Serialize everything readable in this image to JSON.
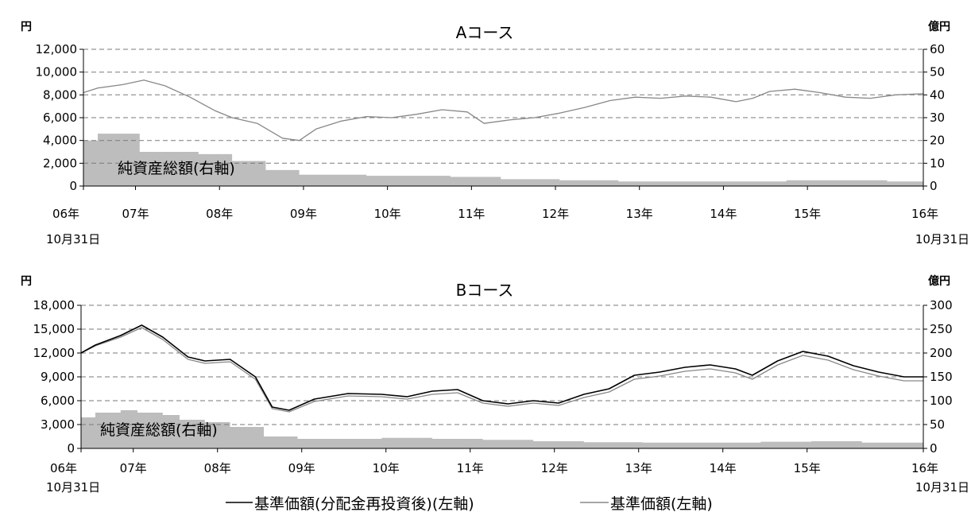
{
  "legend": {
    "items": [
      {
        "label": "基準価額(分配金再投資後)(左軸)",
        "color": "#000000"
      },
      {
        "label": "基準価額(左軸)",
        "color": "#888888"
      }
    ]
  },
  "chart_data": [
    {
      "type": "line",
      "title": "Aコース",
      "left_unit": "円",
      "right_unit": "億円",
      "area_label": "純資産総額(右軸)",
      "ylim": [
        0,
        12000
      ],
      "y_ticks": [
        0,
        2000,
        4000,
        6000,
        8000,
        10000,
        12000
      ],
      "y_tick_labels": [
        "0",
        "2,000",
        "4,000",
        "6,000",
        "8,000",
        "10,000",
        "12,000"
      ],
      "y2lim": [
        0,
        60
      ],
      "y2_ticks": [
        0,
        10,
        20,
        30,
        40,
        50,
        60
      ],
      "y2_tick_labels": [
        "0",
        "10",
        "20",
        "30",
        "40",
        "50",
        "60"
      ],
      "xlim": [
        2006.83,
        2016.83
      ],
      "x_ticks": [
        2006.83,
        2007.45,
        2008.45,
        2009.45,
        2010.45,
        2011.45,
        2012.45,
        2013.45,
        2014.45,
        2015.45,
        2016.83
      ],
      "x_tick_labels": [
        "06年",
        "07年",
        "08年",
        "09年",
        "10年",
        "11年",
        "12年",
        "13年",
        "14年",
        "15年",
        "16年"
      ],
      "x_edge_labels": [
        "10月31日",
        "10月31日"
      ],
      "grid": true,
      "series": [
        {
          "name": "基準価額(分配金再投資後)",
          "axis": "left",
          "color": "#888888",
          "x": [
            2006.83,
            2007.0,
            2007.3,
            2007.55,
            2007.8,
            2008.1,
            2008.4,
            2008.6,
            2008.9,
            2009.2,
            2009.4,
            2009.6,
            2009.9,
            2010.2,
            2010.5,
            2010.8,
            2011.1,
            2011.4,
            2011.6,
            2011.9,
            2012.2,
            2012.5,
            2012.8,
            2013.1,
            2013.4,
            2013.7,
            2014.0,
            2014.3,
            2014.6,
            2014.8,
            2015.0,
            2015.3,
            2015.6,
            2015.9,
            2016.2,
            2016.5,
            2016.83
          ],
          "y": [
            8200,
            8600,
            8900,
            9300,
            8800,
            7800,
            6600,
            6000,
            5500,
            4200,
            4000,
            5000,
            5700,
            6100,
            6000,
            6300,
            6700,
            6500,
            5500,
            5800,
            6000,
            6400,
            6900,
            7500,
            7800,
            7700,
            7900,
            7800,
            7400,
            7700,
            8300,
            8500,
            8200,
            7800,
            7700,
            8000,
            8100
          ]
        },
        {
          "name": "純資産総額",
          "axis": "right",
          "type": "area",
          "color": "#bdbdbd",
          "x": [
            2006.83,
            2007.0,
            2007.3,
            2007.5,
            2007.8,
            2008.2,
            2008.6,
            2009.0,
            2009.4,
            2009.8,
            2010.2,
            2010.6,
            2011.2,
            2011.8,
            2012.5,
            2013.2,
            2013.9,
            2014.6,
            2015.2,
            2015.9,
            2016.4,
            2016.83
          ],
          "y": [
            20,
            23,
            23,
            15,
            15,
            14,
            11,
            7,
            5,
            5,
            4.5,
            4.5,
            4,
            3,
            2.5,
            2,
            2,
            2,
            2.5,
            2.5,
            2,
            2
          ]
        }
      ]
    },
    {
      "type": "line",
      "title": "Bコース",
      "left_unit": "円",
      "right_unit": "億円",
      "area_label": "純資産総額(右軸)",
      "ylim": [
        0,
        18000
      ],
      "y_ticks": [
        0,
        3000,
        6000,
        9000,
        12000,
        15000,
        18000
      ],
      "y_tick_labels": [
        "0",
        "3,000",
        "6,000",
        "9,000",
        "12,000",
        "15,000",
        "18,000"
      ],
      "y2lim": [
        0,
        300
      ],
      "y2_ticks": [
        0,
        50,
        100,
        150,
        200,
        250,
        300
      ],
      "y2_tick_labels": [
        "0",
        "50",
        "100",
        "150",
        "200",
        "250",
        "300"
      ],
      "xlim": [
        2006.83,
        2016.83
      ],
      "x_ticks": [
        2006.83,
        2007.45,
        2008.45,
        2009.45,
        2010.45,
        2011.45,
        2012.45,
        2013.45,
        2014.45,
        2015.45,
        2016.83
      ],
      "x_tick_labels": [
        "06年",
        "07年",
        "08年",
        "09年",
        "10年",
        "11年",
        "12年",
        "13年",
        "14年",
        "15年",
        "16年"
      ],
      "x_edge_labels": [
        "10月31日",
        "10月31日"
      ],
      "grid": true,
      "series": [
        {
          "name": "基準価額(分配金再投資後)",
          "axis": "left",
          "color": "#000000",
          "x": [
            2006.83,
            2007.0,
            2007.3,
            2007.55,
            2007.8,
            2008.1,
            2008.3,
            2008.6,
            2008.9,
            2009.1,
            2009.3,
            2009.6,
            2010.0,
            2010.4,
            2010.7,
            2011.0,
            2011.3,
            2011.6,
            2011.9,
            2012.2,
            2012.5,
            2012.8,
            2013.1,
            2013.4,
            2013.7,
            2014.0,
            2014.3,
            2014.6,
            2014.8,
            2015.1,
            2015.4,
            2015.7,
            2016.0,
            2016.3,
            2016.6,
            2016.83
          ],
          "y": [
            12000,
            13000,
            14200,
            15500,
            14000,
            11500,
            11000,
            11200,
            9000,
            5200,
            4800,
            6200,
            6900,
            6800,
            6500,
            7200,
            7400,
            6000,
            5600,
            6000,
            5700,
            6800,
            7500,
            9200,
            9600,
            10200,
            10500,
            10000,
            9200,
            11000,
            12200,
            11600,
            10400,
            9600,
            9000,
            9000
          ]
        },
        {
          "name": "基準価額",
          "axis": "left",
          "color": "#888888",
          "x": [
            2006.83,
            2007.0,
            2007.3,
            2007.55,
            2007.8,
            2008.1,
            2008.3,
            2008.6,
            2008.9,
            2009.1,
            2009.3,
            2009.6,
            2010.0,
            2010.4,
            2010.7,
            2011.0,
            2011.3,
            2011.6,
            2011.9,
            2012.2,
            2012.5,
            2012.8,
            2013.1,
            2013.4,
            2013.7,
            2014.0,
            2014.3,
            2014.6,
            2014.8,
            2015.1,
            2015.4,
            2015.7,
            2016.0,
            2016.3,
            2016.6,
            2016.83
          ],
          "y": [
            12000,
            12900,
            14000,
            15200,
            13700,
            11200,
            10700,
            10900,
            8700,
            5000,
            4600,
            5900,
            6600,
            6500,
            6200,
            6800,
            7000,
            5700,
            5300,
            5700,
            5400,
            6400,
            7100,
            8700,
            9100,
            9700,
            10000,
            9500,
            8700,
            10500,
            11700,
            11100,
            9900,
            9100,
            8500,
            8500
          ]
        },
        {
          "name": "純資産総額",
          "axis": "right",
          "type": "area",
          "color": "#bdbdbd",
          "x": [
            2006.83,
            2007.0,
            2007.3,
            2007.5,
            2007.8,
            2008.0,
            2008.3,
            2008.6,
            2009.0,
            2009.4,
            2009.8,
            2010.4,
            2011.0,
            2011.6,
            2012.2,
            2012.8,
            2013.5,
            2014.2,
            2014.9,
            2015.5,
            2016.1,
            2016.83
          ],
          "y": [
            65,
            75,
            80,
            75,
            70,
            60,
            55,
            45,
            25,
            20,
            20,
            22,
            20,
            18,
            15,
            13,
            12,
            12,
            14,
            15,
            12,
            10
          ]
        }
      ]
    }
  ]
}
